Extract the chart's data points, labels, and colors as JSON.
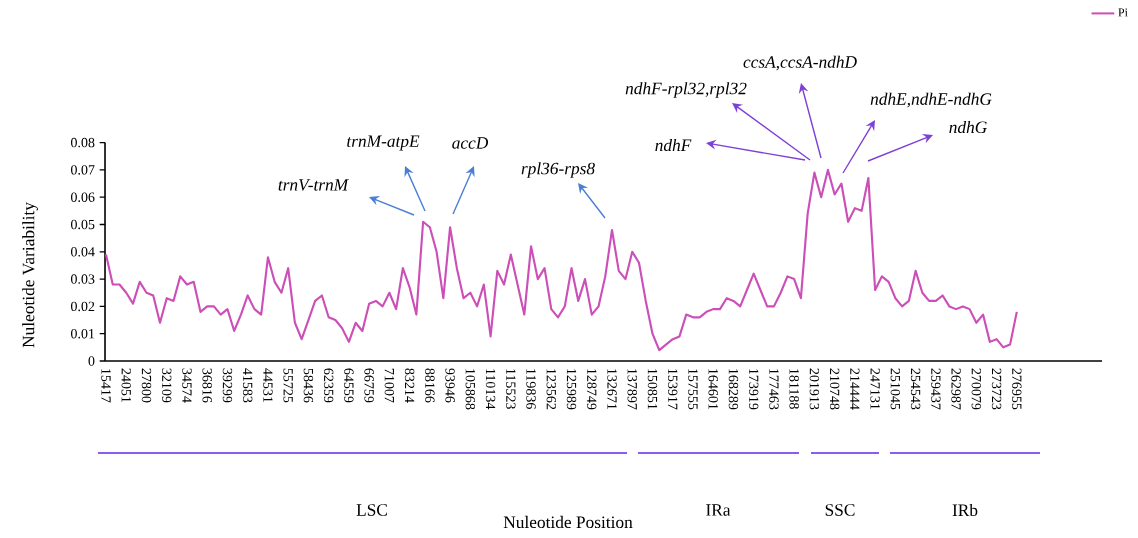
{
  "chart_data": {
    "type": "line",
    "ylabel": "Nuleotide Variability",
    "categories": [
      "15417",
      null,
      null,
      "24051",
      null,
      null,
      "27800",
      null,
      null,
      "32109",
      null,
      null,
      "34574",
      null,
      null,
      "36816",
      null,
      null,
      "39299",
      null,
      null,
      "41583",
      null,
      null,
      "44531",
      null,
      null,
      "55725",
      null,
      null,
      "58436",
      null,
      null,
      "62359",
      null,
      null,
      "64559",
      null,
      null,
      "66759",
      null,
      null,
      "71007",
      null,
      null,
      "83214",
      null,
      null,
      "88166",
      null,
      null,
      "93946",
      null,
      null,
      "105868",
      null,
      null,
      "110134",
      null,
      null,
      "115523",
      null,
      null,
      "119836",
      null,
      null,
      "123562",
      null,
      null,
      "125989",
      null,
      null,
      "128749",
      null,
      null,
      "132671",
      null,
      null,
      "137897",
      null,
      null,
      "150851",
      null,
      null,
      "153917",
      null,
      null,
      "157555",
      null,
      null,
      "164601",
      null,
      null,
      "168289",
      null,
      null,
      "173919",
      null,
      null,
      "177463",
      null,
      null,
      "181188",
      null,
      null,
      "201913",
      null,
      null,
      "210748",
      null,
      null,
      "214444",
      null,
      null,
      "247131",
      null,
      null,
      "251045",
      null,
      null,
      "254543",
      null,
      null,
      "259437",
      null,
      null,
      "262987",
      null,
      null,
      "270079",
      null,
      null,
      "273723",
      null,
      null,
      "276955"
    ],
    "series": [
      {
        "name": "Pi",
        "color": "#cc4fb8",
        "values": [
          0.039,
          0.028,
          0.028,
          0.025,
          0.021,
          0.029,
          0.025,
          0.024,
          0.014,
          0.023,
          0.022,
          0.031,
          0.028,
          0.029,
          0.018,
          0.02,
          0.02,
          0.017,
          0.019,
          0.011,
          0.017,
          0.024,
          0.019,
          0.017,
          0.038,
          0.029,
          0.025,
          0.034,
          0.014,
          0.008,
          0.015,
          0.022,
          0.024,
          0.016,
          0.015,
          0.012,
          0.007,
          0.014,
          0.011,
          0.021,
          0.022,
          0.02,
          0.025,
          0.019,
          0.034,
          0.027,
          0.017,
          0.051,
          0.049,
          0.04,
          0.023,
          0.049,
          0.034,
          0.023,
          0.025,
          0.02,
          0.028,
          0.009,
          0.033,
          0.028,
          0.039,
          0.028,
          0.017,
          0.042,
          0.03,
          0.034,
          0.019,
          0.016,
          0.02,
          0.034,
          0.022,
          0.03,
          0.017,
          0.02,
          0.031,
          0.048,
          0.033,
          0.03,
          0.04,
          0.036,
          0.022,
          0.01,
          0.004,
          0.006,
          0.008,
          0.009,
          0.017,
          0.016,
          0.016,
          0.018,
          0.019,
          0.019,
          0.023,
          0.022,
          0.02,
          0.026,
          0.032,
          0.026,
          0.02,
          0.02,
          0.025,
          0.031,
          0.03,
          0.023,
          0.054,
          0.069,
          0.06,
          0.07,
          0.061,
          0.065,
          0.051,
          0.056,
          0.055,
          0.067,
          0.026,
          0.031,
          0.029,
          0.023,
          0.02,
          0.022,
          0.033,
          0.025,
          0.022,
          0.022,
          0.024,
          0.02,
          0.019,
          0.02,
          0.019,
          0.014,
          0.017,
          0.007,
          0.008,
          0.005,
          0.006,
          0.018
        ]
      }
    ],
    "ylim": [
      0,
      0.08
    ],
    "yticks": [
      0,
      0.01,
      0.02,
      0.03,
      0.04,
      0.05,
      0.06,
      0.07,
      0.08
    ],
    "legend": "top right",
    "annotations": [
      "trnM-atpE",
      "accD",
      "trnV-trnM",
      "rpl36-rps8",
      "ccsA,ccsA-ndhD",
      "ndhF-rpl32,rpl32",
      "ndhE,ndhE-ndhG",
      "ndhG",
      "ndhF",
      "LSC",
      "IRa",
      "SSC",
      "IRb",
      "Nuleotide Position"
    ]
  }
}
